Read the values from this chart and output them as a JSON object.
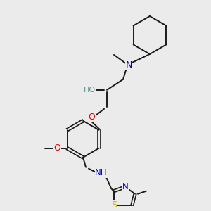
{
  "background_color": "#ebebeb",
  "bond_color": "#1a1a1a",
  "atom_colors": {
    "N": "#0000cc",
    "O": "#ee0000",
    "S": "#b8b800",
    "H_label": "#5f9090",
    "C": "#1a1a1a"
  },
  "figsize": [
    3.0,
    3.0
  ],
  "dpi": 100
}
